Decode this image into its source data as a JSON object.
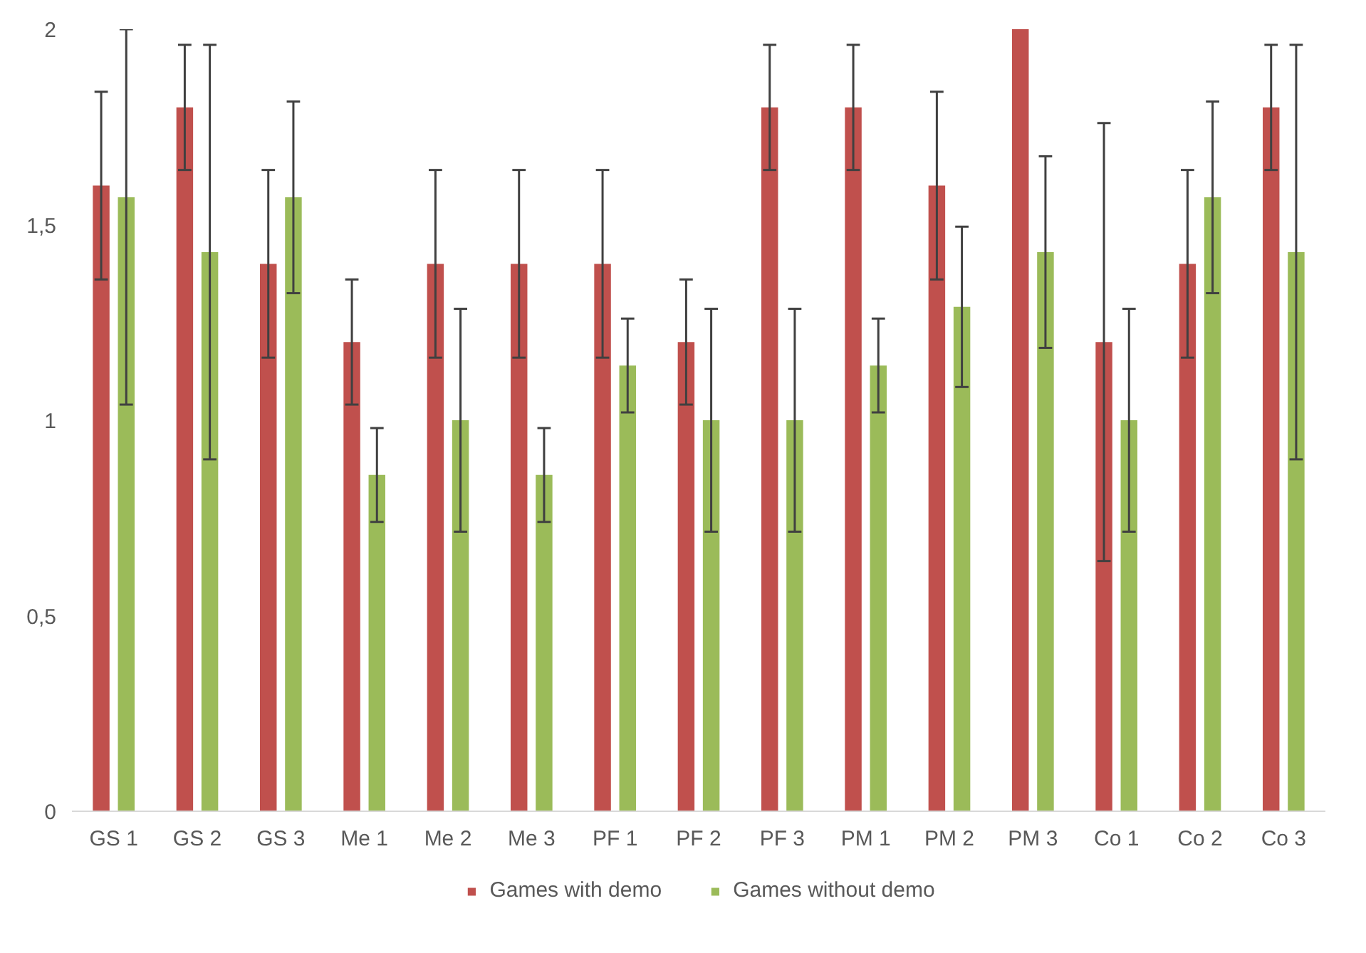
{
  "chart_data": {
    "type": "bar",
    "categories": [
      "GS 1",
      "GS 2",
      "GS 3",
      "Me 1",
      "Me 2",
      "Me 3",
      "PF 1",
      "PF 2",
      "PF 3",
      "PM 1",
      "PM 2",
      "PM 3",
      "Co 1",
      "Co 2",
      "Co 3"
    ],
    "series": [
      {
        "name": "Games with demo",
        "color": "#c0504d",
        "values": [
          1.6,
          1.8,
          1.4,
          1.2,
          1.4,
          1.4,
          1.4,
          1.2,
          1.8,
          1.8,
          1.6,
          2.0,
          1.2,
          1.4,
          1.8
        ],
        "errors": [
          0.24,
          0.16,
          0.24,
          0.16,
          0.24,
          0.24,
          0.24,
          0.16,
          0.16,
          0.16,
          0.24,
          null,
          0.56,
          0.24,
          0.16
        ]
      },
      {
        "name": "Games without demo",
        "color": "#9bbb59",
        "values": [
          1.57,
          1.43,
          1.57,
          0.86,
          1.0,
          0.86,
          1.14,
          1.0,
          1.0,
          1.14,
          1.29,
          1.43,
          1.0,
          1.57,
          1.43
        ],
        "errors": [
          [
            1.04,
            2.0
          ],
          0.53,
          0.245,
          0.12,
          0.285,
          0.12,
          0.12,
          0.285,
          0.285,
          0.12,
          0.205,
          0.245,
          0.285,
          0.245,
          0.53
        ]
      }
    ],
    "ylim": [
      0,
      2
    ],
    "yticks": [
      0,
      {
        "value": 0.5,
        "label": "0,5"
      },
      1,
      {
        "value": 1.5,
        "label": "1,5"
      },
      2
    ],
    "grid": false,
    "legend": "bottom"
  }
}
